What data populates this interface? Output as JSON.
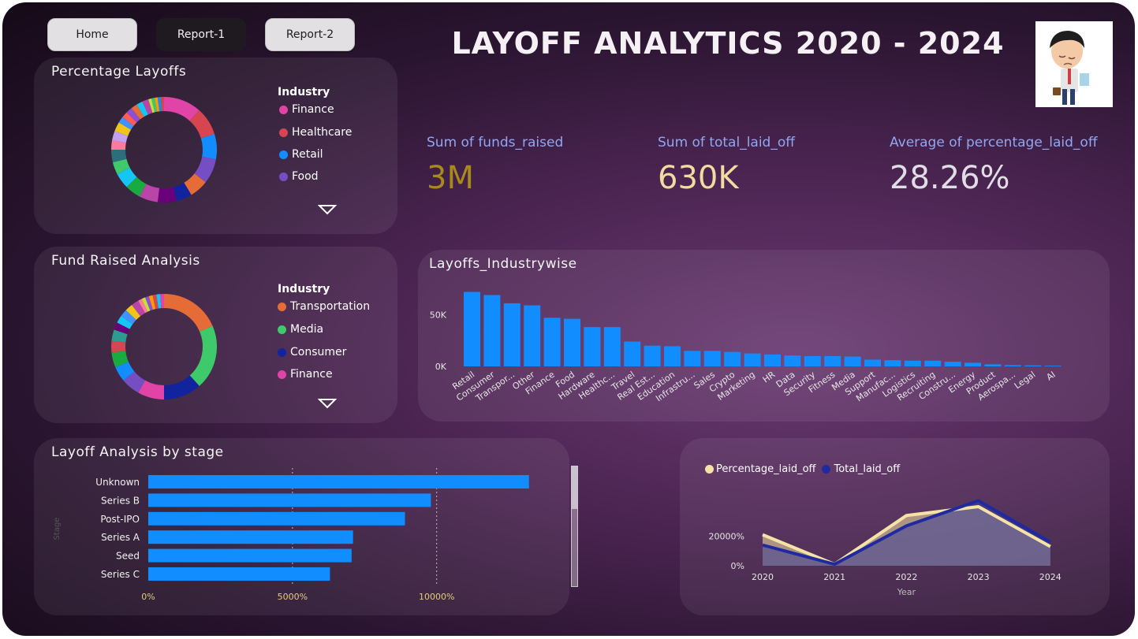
{
  "nav": {
    "home": "Home",
    "report1": "Report-1",
    "report2": "Report-2"
  },
  "title": "LAYOFF ANALYTICS 2020 - 2024",
  "kpis": [
    {
      "label": "Sum of funds_raised",
      "value": "3M",
      "color": "#a8891c"
    },
    {
      "label": "Sum of total_laid_off",
      "value": "630K",
      "color": "#f2dba0"
    },
    {
      "label": "Average of percentage_laid_off",
      "value": "28.26%",
      "color": "#e1dde6"
    }
  ],
  "pct_layoffs": {
    "title": "Percentage Layoffs",
    "legend_title": "Industry",
    "legend": [
      {
        "label": "Finance",
        "color": "#e044a7"
      },
      {
        "label": "Healthcare",
        "color": "#d64550"
      },
      {
        "label": "Retail",
        "color": "#118dff"
      },
      {
        "label": "Food",
        "color": "#744ec2"
      }
    ]
  },
  "fund_raised": {
    "title": "Fund Raised Analysis",
    "legend_title": "Industry",
    "legend": [
      {
        "label": "Transportation",
        "color": "#e66c37"
      },
      {
        "label": "Media",
        "color": "#3ec96a"
      },
      {
        "label": "Consumer",
        "color": "#12239e"
      },
      {
        "label": "Finance",
        "color": "#e044a7"
      }
    ]
  },
  "icons": {
    "dropdown": "caret-down-outline-icon",
    "avatar": "tired-office-worker-illustration"
  },
  "industry_chart": {
    "title": "Layoffs_Industrywise",
    "chart_data": {
      "type": "bar",
      "categories": [
        "Retail",
        "Consumer",
        "Transpor...",
        "Other",
        "Finance",
        "Food",
        "Hardware",
        "Healthc...",
        "Travel",
        "Real Est...",
        "Education",
        "Infrastru...",
        "Sales",
        "Crypto",
        "Marketing",
        "HR",
        "Data",
        "Security",
        "Fitness",
        "Media",
        "Support",
        "Manufac...",
        "Logistics",
        "Recruiting",
        "Constru...",
        "Energy",
        "Product",
        "Aerospa...",
        "Legal",
        "AI"
      ],
      "values": [
        72000,
        69000,
        61000,
        59000,
        47000,
        46000,
        38000,
        38000,
        24000,
        20000,
        19500,
        15000,
        15000,
        14000,
        12500,
        11500,
        10500,
        10000,
        10000,
        9500,
        6500,
        6000,
        5500,
        5500,
        4500,
        3500,
        2000,
        1200,
        900,
        600
      ],
      "ytick_labels": [
        "0K",
        "50K"
      ],
      "ylim": [
        0,
        80000
      ],
      "color": "#118dff"
    }
  },
  "stage_chart": {
    "title": "Layoff Analysis by stage",
    "axis_label": "Stage",
    "chart_data": {
      "type": "bar",
      "orientation": "horizontal",
      "categories": [
        "Unknown",
        "Series B",
        "Post-IPO",
        "Series A",
        "Seed",
        "Series C"
      ],
      "values": [
        13200,
        9800,
        8900,
        7100,
        7050,
        6300
      ],
      "xtick_labels": [
        "0%",
        "5000%",
        "10000%"
      ],
      "xlim": [
        0,
        14000
      ],
      "color": "#118dff"
    }
  },
  "year_chart": {
    "legend": [
      {
        "label": "Percentage_laid_off",
        "color": "#f4e3a6"
      },
      {
        "label": "Total_laid_off",
        "color": "#1f2aa0"
      }
    ],
    "ytick_labels": [
      "0%",
      "20000%"
    ],
    "xlabel": "Year",
    "chart_data": {
      "type": "area",
      "x": [
        "2020",
        "2021",
        "2022",
        "2023",
        "2024"
      ],
      "series": [
        {
          "name": "Percentage_laid_off",
          "values": [
            21000,
            1000,
            34000,
            40000,
            13000
          ]
        },
        {
          "name": "Total_laid_off",
          "values": [
            14000,
            1000,
            27000,
            44000,
            16000
          ]
        }
      ],
      "ylim": [
        0,
        48000
      ]
    }
  }
}
